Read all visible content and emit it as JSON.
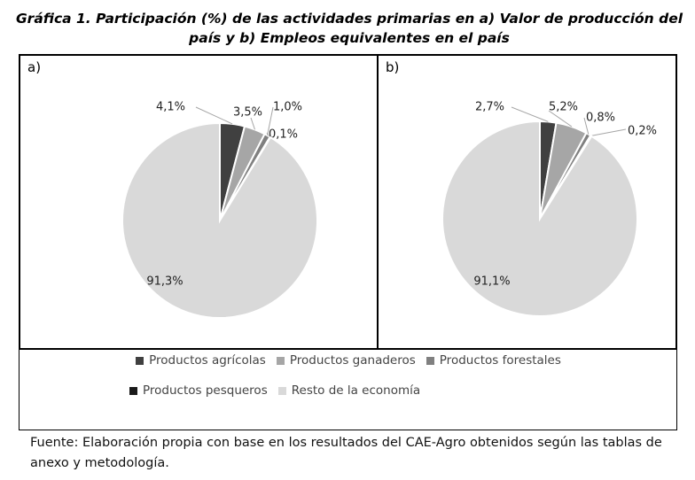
{
  "title": "Gráfica 1. Participación (%) de las actividades primarias en a) Valor de producción del país y b) Empleos equivalentes en el país",
  "source": "Fuente: Elaboración propia con base en los resultados del CAE-Agro obtenidos según las tablas de anexo y metodología.",
  "categories": [
    "Productos agrícolas",
    "Productos ganaderos",
    "Productos forestales",
    "Productos pesqueros",
    "Resto de la economía"
  ],
  "colors": [
    "#404040",
    "#a6a6a6",
    "#808080",
    "#1a1a1a",
    "#d9d9d9"
  ],
  "chart_data": [
    {
      "type": "pie",
      "panel_label": "a)",
      "categories": [
        "Productos agrícolas",
        "Productos ganaderos",
        "Productos forestales",
        "Productos pesqueros",
        "Resto de la economía"
      ],
      "values": [
        4.1,
        3.5,
        1.0,
        0.1,
        91.3
      ],
      "labels": [
        "4,1%",
        "3,5%",
        "1,0%",
        "0,1%",
        "91,3%"
      ],
      "legend": "bottom"
    },
    {
      "type": "pie",
      "panel_label": "b)",
      "categories": [
        "Productos agrícolas",
        "Productos ganaderos",
        "Productos forestales",
        "Productos pesqueros",
        "Resto de la economía"
      ],
      "values": [
        2.7,
        5.2,
        0.8,
        0.2,
        91.1
      ],
      "labels": [
        "2,7%",
        "5,2%",
        "0,8%",
        "0,2%",
        "91,1%"
      ],
      "legend": "bottom"
    }
  ]
}
